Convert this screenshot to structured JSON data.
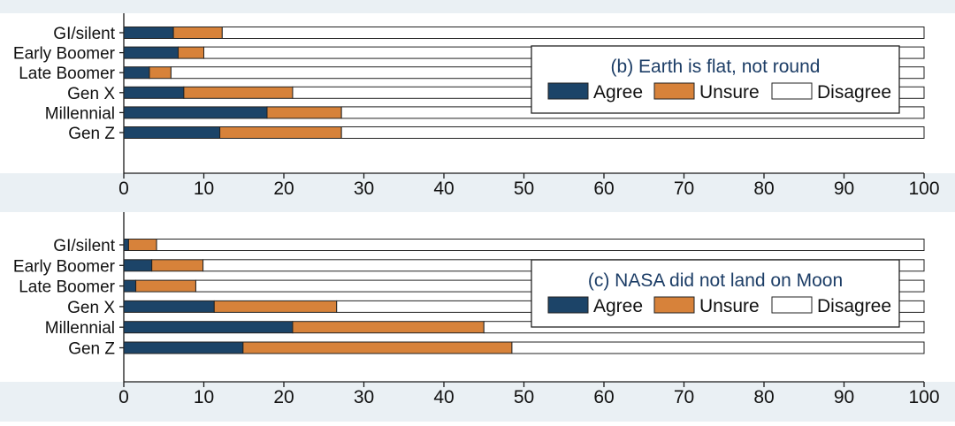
{
  "colors": {
    "background": "#eaf0f4",
    "plot_bg": "#ffffff",
    "axis": "#1a1a1a",
    "agree": "#1c4468",
    "unsure": "#d7823a",
    "disagree": "#ffffff",
    "legend_title": "#1c3d66",
    "text": "#111111"
  },
  "chart_data": [
    {
      "type": "bar",
      "orientation": "horizontal",
      "stacked": true,
      "title": "(b)  Earth is flat, not round",
      "categories": [
        "GI/silent",
        "Early Boomer",
        "Late Boomer",
        "Gen X",
        "Millennial",
        "Gen Z"
      ],
      "series": [
        {
          "name": "Agree",
          "values": [
            6.2,
            6.8,
            3.2,
            7.5,
            17.9,
            12.0
          ]
        },
        {
          "name": "Unsure",
          "values": [
            6.1,
            3.2,
            2.7,
            13.6,
            9.3,
            15.2
          ]
        },
        {
          "name": "Disagree",
          "values": [
            87.7,
            90.0,
            94.1,
            78.9,
            72.8,
            72.8
          ]
        }
      ],
      "xlim": [
        0,
        100
      ],
      "xticks": [
        "0",
        "10",
        "20",
        "30",
        "40",
        "50",
        "60",
        "70",
        "80",
        "90",
        "100"
      ],
      "legend": {
        "labels": [
          "Agree",
          "Unsure",
          "Disagree"
        ],
        "placement": "right"
      },
      "xlabel": "",
      "ylabel": ""
    },
    {
      "type": "bar",
      "orientation": "horizontal",
      "stacked": true,
      "title": "(c)  NASA did not land on Moon",
      "categories": [
        "GI/silent",
        "Early Boomer",
        "Late Boomer",
        "Gen X",
        "Millennial",
        "Gen Z"
      ],
      "series": [
        {
          "name": "Agree",
          "values": [
            0.6,
            3.5,
            1.5,
            11.3,
            21.1,
            14.9
          ]
        },
        {
          "name": "Unsure",
          "values": [
            3.5,
            6.4,
            7.5,
            15.3,
            23.9,
            33.6
          ]
        },
        {
          "name": "Disagree",
          "values": [
            95.9,
            90.1,
            91.0,
            73.4,
            55.0,
            51.5
          ]
        }
      ],
      "xlim": [
        0,
        100
      ],
      "xticks": [
        "0",
        "10",
        "20",
        "30",
        "40",
        "50",
        "60",
        "70",
        "80",
        "90",
        "100"
      ],
      "legend": {
        "labels": [
          "Agree",
          "Unsure",
          "Disagree"
        ],
        "placement": "right"
      },
      "xlabel": "",
      "ylabel": ""
    }
  ]
}
